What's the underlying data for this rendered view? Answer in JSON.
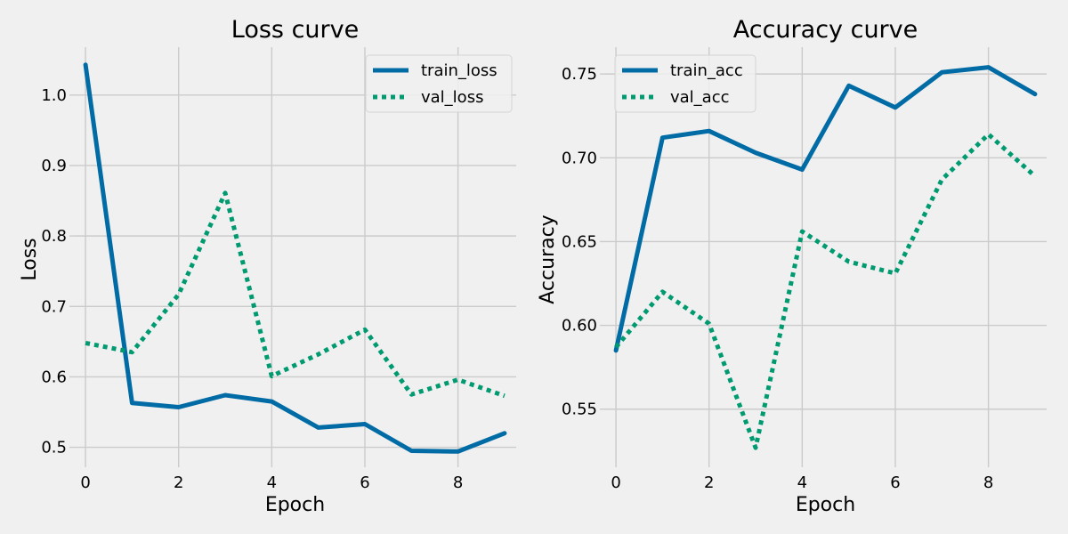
{
  "chart_data": [
    {
      "type": "line",
      "title": "Loss curve",
      "xlabel": "Epoch",
      "ylabel": "Loss",
      "xlim": [
        -0.25,
        9.25
      ],
      "ylim": [
        0.478,
        1.068
      ],
      "xticks": [
        0,
        2,
        4,
        6,
        8
      ],
      "yticks": [
        0.5,
        0.6,
        0.7,
        0.8,
        0.9,
        1.0
      ],
      "ytick_labels": [
        "0.5",
        "0.6",
        "0.7",
        "0.8",
        "0.9",
        "1.0"
      ],
      "grid": true,
      "legend": "top-right",
      "x": [
        0,
        1,
        2,
        3,
        4,
        5,
        6,
        7,
        8,
        9
      ],
      "series": [
        {
          "name": "train_loss",
          "style": "solid",
          "color": "#006BA4",
          "values": [
            1.043,
            0.563,
            0.557,
            0.574,
            0.565,
            0.528,
            0.533,
            0.495,
            0.494,
            0.52
          ]
        },
        {
          "name": "val_loss",
          "style": "dotted",
          "color": "#009A70",
          "values": [
            0.648,
            0.635,
            0.717,
            0.861,
            0.601,
            0.632,
            0.667,
            0.575,
            0.596,
            0.573
          ]
        }
      ]
    },
    {
      "type": "line",
      "title": "Accuracy curve",
      "xlabel": "Epoch",
      "ylabel": "Accuracy",
      "xlim": [
        -0.25,
        9.25
      ],
      "ylim": [
        0.518,
        0.766
      ],
      "xticks": [
        0,
        2,
        4,
        6,
        8
      ],
      "yticks": [
        0.55,
        0.6,
        0.65,
        0.7,
        0.75
      ],
      "ytick_labels": [
        "0.55",
        "0.60",
        "0.65",
        "0.70",
        "0.75"
      ],
      "grid": true,
      "legend": "top-left",
      "x": [
        0,
        1,
        2,
        3,
        4,
        5,
        6,
        7,
        8,
        9
      ],
      "series": [
        {
          "name": "train_acc",
          "style": "solid",
          "color": "#006BA4",
          "values": [
            0.585,
            0.712,
            0.716,
            0.703,
            0.693,
            0.743,
            0.73,
            0.751,
            0.754,
            0.738
          ]
        },
        {
          "name": "val_acc",
          "style": "dotted",
          "color": "#009A70",
          "values": [
            0.587,
            0.62,
            0.601,
            0.527,
            0.656,
            0.638,
            0.631,
            0.687,
            0.714,
            0.689
          ]
        }
      ]
    }
  ]
}
